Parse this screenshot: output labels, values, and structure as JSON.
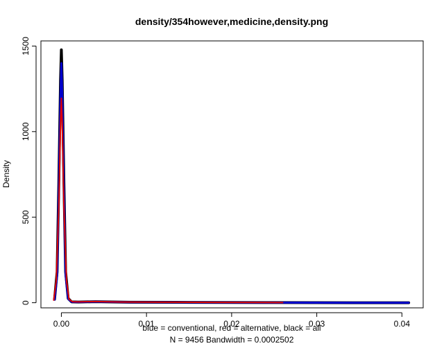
{
  "chart_data": {
    "type": "line",
    "title": "density/354however,medicine,density.png",
    "xlabel": "blue = conventional, red = alternative, black = all",
    "sublabel": "N = 9456   Bandwidth = 0.0002502",
    "ylabel": "Density",
    "xlim": [
      -0.0024,
      0.0425
    ],
    "ylim": [
      -30,
      1530
    ],
    "x_ticks": [
      0.0,
      0.01,
      0.02,
      0.03,
      0.04
    ],
    "x_tick_labels": [
      "0.00",
      "0.01",
      "0.02",
      "0.03",
      "0.04"
    ],
    "y_ticks": [
      0,
      500,
      1000,
      1500
    ],
    "y_tick_labels": [
      "0",
      "500",
      "1000",
      "1500"
    ],
    "grid": false,
    "legend": "none",
    "series": [
      {
        "name": "all",
        "color": "#000000",
        "x": [
          -0.0008,
          -0.0005,
          -0.0003,
          -0.0001,
          0.0,
          0.0001,
          0.0003,
          0.0005,
          0.0008,
          0.0012,
          0.002,
          0.004,
          0.008,
          0.015,
          0.025,
          0.035,
          0.0408
        ],
        "y": [
          20,
          180,
          700,
          1300,
          1478,
          1300,
          700,
          180,
          25,
          5,
          4,
          6,
          3,
          2,
          1,
          0,
          0
        ]
      },
      {
        "name": "conventional",
        "color": "#0000cc",
        "x": [
          -0.0008,
          -0.0005,
          -0.0003,
          -0.0001,
          0.0,
          0.0001,
          0.0003,
          0.0005,
          0.0008,
          0.0012,
          0.002,
          0.004,
          0.008,
          0.015,
          0.025,
          0.035,
          0.0408
        ],
        "y": [
          18,
          160,
          650,
          1220,
          1400,
          1220,
          650,
          160,
          22,
          5,
          4,
          6,
          3,
          2,
          1,
          0,
          0
        ]
      },
      {
        "name": "alternative",
        "color": "#dd0000",
        "x": [
          -0.0009,
          -0.0006,
          -0.0003,
          -0.0001,
          0.0,
          0.0001,
          0.0003,
          0.0006,
          0.0009,
          0.0013,
          0.002,
          0.004,
          0.007,
          0.012,
          0.018,
          0.026
        ],
        "y": [
          15,
          130,
          560,
          1050,
          1195,
          1050,
          560,
          130,
          20,
          6,
          5,
          7,
          4,
          3,
          2,
          1
        ]
      }
    ]
  }
}
